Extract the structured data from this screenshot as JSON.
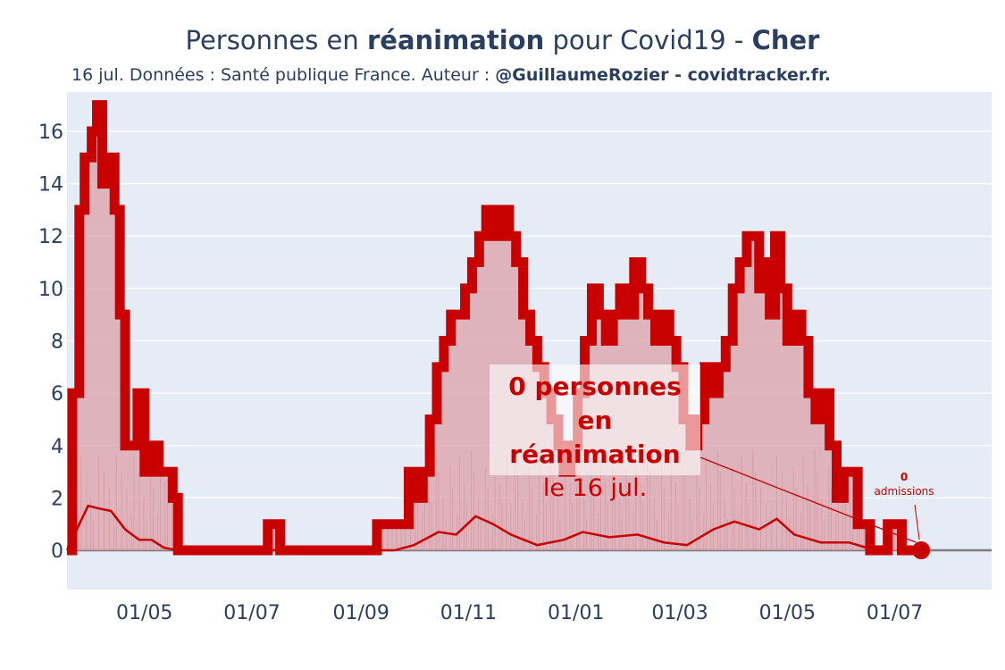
{
  "header": {
    "title_pre": "Personnes en ",
    "title_bold": "réanimation",
    "title_mid": " pour Covid19 - ",
    "title_dept": "Cher",
    "subtitle_pre": "16 jul. Données : Santé publique France. Auteur : ",
    "subtitle_bold": "@GuillaumeRozier - covidtracker.fr."
  },
  "annotation": {
    "line1": "0 personnes",
    "line2": "en réanimation",
    "line3": "le 16 jul."
  },
  "admissions": {
    "value": "0",
    "label": "admissions"
  },
  "colors": {
    "line": "#c80000",
    "fill": "#dba0a8",
    "plot_bg": "#e5ecf6",
    "grid": "#ffffff",
    "text": "#2a3f5f"
  },
  "chart_data": {
    "type": "line",
    "title": "Personnes en réanimation pour Covid19 - Cher",
    "x_axis": {
      "start": "2020-03-18",
      "end": "2021-08-25",
      "ticks": [
        {
          "date": "2020-05-01",
          "label": "01/05"
        },
        {
          "date": "2020-07-01",
          "label": "01/07"
        },
        {
          "date": "2020-09-01",
          "label": "01/09"
        },
        {
          "date": "2020-11-01",
          "label": "01/11"
        },
        {
          "date": "2021-01-01",
          "label": "01/01"
        },
        {
          "date": "2021-03-01",
          "label": "01/03"
        },
        {
          "date": "2021-05-01",
          "label": "01/05"
        },
        {
          "date": "2021-07-01",
          "label": "01/07"
        }
      ]
    },
    "y_axis": {
      "range": [
        -1.5,
        17.5
      ],
      "ticks": [
        0,
        2,
        4,
        6,
        8,
        10,
        12,
        14,
        16
      ],
      "grid": true
    },
    "series": [
      {
        "role": "reanimation",
        "points": [
          [
            "2020-03-18",
            0
          ],
          [
            "2020-03-21",
            6
          ],
          [
            "2020-03-25",
            13
          ],
          [
            "2020-03-28",
            15
          ],
          [
            "2020-04-01",
            16
          ],
          [
            "2020-04-04",
            17
          ],
          [
            "2020-04-07",
            14
          ],
          [
            "2020-04-10",
            15
          ],
          [
            "2020-04-14",
            13
          ],
          [
            "2020-04-17",
            9
          ],
          [
            "2020-04-20",
            4
          ],
          [
            "2020-04-24",
            4
          ],
          [
            "2020-04-27",
            6
          ],
          [
            "2020-05-01",
            3
          ],
          [
            "2020-05-05",
            4
          ],
          [
            "2020-05-09",
            3
          ],
          [
            "2020-05-13",
            3
          ],
          [
            "2020-05-17",
            2
          ],
          [
            "2020-05-20",
            0
          ],
          [
            "2020-07-08",
            0
          ],
          [
            "2020-07-10",
            1
          ],
          [
            "2020-07-15",
            1
          ],
          [
            "2020-07-17",
            0
          ],
          [
            "2020-09-07",
            0
          ],
          [
            "2020-09-10",
            1
          ],
          [
            "2020-09-25",
            1
          ],
          [
            "2020-09-28",
            3
          ],
          [
            "2020-10-02",
            2
          ],
          [
            "2020-10-06",
            3
          ],
          [
            "2020-10-10",
            5
          ],
          [
            "2020-10-14",
            7
          ],
          [
            "2020-10-18",
            8
          ],
          [
            "2020-10-22",
            9
          ],
          [
            "2020-10-26",
            9
          ],
          [
            "2020-10-30",
            10
          ],
          [
            "2020-11-03",
            11
          ],
          [
            "2020-11-07",
            12
          ],
          [
            "2020-11-11",
            13
          ],
          [
            "2020-11-15",
            12
          ],
          [
            "2020-11-19",
            13
          ],
          [
            "2020-11-24",
            12
          ],
          [
            "2020-11-28",
            11
          ],
          [
            "2020-12-02",
            9
          ],
          [
            "2020-12-06",
            8
          ],
          [
            "2020-12-10",
            7
          ],
          [
            "2020-12-14",
            6
          ],
          [
            "2020-12-18",
            5
          ],
          [
            "2020-12-22",
            4
          ],
          [
            "2020-12-25",
            3
          ],
          [
            "2020-12-29",
            4
          ],
          [
            "2021-01-02",
            6
          ],
          [
            "2021-01-06",
            8
          ],
          [
            "2021-01-10",
            10
          ],
          [
            "2021-01-14",
            9
          ],
          [
            "2021-01-18",
            8
          ],
          [
            "2021-01-22",
            9
          ],
          [
            "2021-01-26",
            10
          ],
          [
            "2021-01-30",
            9
          ],
          [
            "2021-02-03",
            11
          ],
          [
            "2021-02-07",
            10
          ],
          [
            "2021-02-11",
            9
          ],
          [
            "2021-02-15",
            8
          ],
          [
            "2021-02-19",
            9
          ],
          [
            "2021-02-23",
            8
          ],
          [
            "2021-02-27",
            7
          ],
          [
            "2021-03-03",
            5
          ],
          [
            "2021-03-07",
            4
          ],
          [
            "2021-03-11",
            5
          ],
          [
            "2021-03-15",
            7
          ],
          [
            "2021-03-19",
            6
          ],
          [
            "2021-03-23",
            7
          ],
          [
            "2021-03-27",
            8
          ],
          [
            "2021-03-31",
            10
          ],
          [
            "2021-04-04",
            11
          ],
          [
            "2021-04-08",
            12
          ],
          [
            "2021-04-12",
            12
          ],
          [
            "2021-04-15",
            10
          ],
          [
            "2021-04-18",
            11
          ],
          [
            "2021-04-21",
            9
          ],
          [
            "2021-04-24",
            12
          ],
          [
            "2021-04-27",
            10
          ],
          [
            "2021-05-01",
            8
          ],
          [
            "2021-05-05",
            9
          ],
          [
            "2021-05-09",
            8
          ],
          [
            "2021-05-13",
            6
          ],
          [
            "2021-05-17",
            5
          ],
          [
            "2021-05-21",
            6
          ],
          [
            "2021-05-25",
            4
          ],
          [
            "2021-05-29",
            2
          ],
          [
            "2021-06-02",
            3
          ],
          [
            "2021-06-06",
            3
          ],
          [
            "2021-06-10",
            1
          ],
          [
            "2021-06-14",
            1
          ],
          [
            "2021-06-17",
            0
          ],
          [
            "2021-06-25",
            0
          ],
          [
            "2021-06-27",
            1
          ],
          [
            "2021-07-03",
            1
          ],
          [
            "2021-07-05",
            0
          ],
          [
            "2021-07-16",
            0
          ]
        ]
      },
      {
        "role": "admissions_moving_average",
        "points": [
          [
            "2020-03-18",
            0
          ],
          [
            "2020-03-25",
            1
          ],
          [
            "2020-03-30",
            1.7
          ],
          [
            "2020-04-05",
            1.6
          ],
          [
            "2020-04-12",
            1.5
          ],
          [
            "2020-04-20",
            0.8
          ],
          [
            "2020-04-28",
            0.4
          ],
          [
            "2020-05-05",
            0.4
          ],
          [
            "2020-05-12",
            0.1
          ],
          [
            "2020-05-20",
            0
          ],
          [
            "2020-09-20",
            0
          ],
          [
            "2020-10-01",
            0.2
          ],
          [
            "2020-10-15",
            0.7
          ],
          [
            "2020-10-25",
            0.6
          ],
          [
            "2020-11-05",
            1.3
          ],
          [
            "2020-11-15",
            1.0
          ],
          [
            "2020-11-25",
            0.6
          ],
          [
            "2020-12-10",
            0.2
          ],
          [
            "2020-12-25",
            0.4
          ],
          [
            "2021-01-05",
            0.7
          ],
          [
            "2021-01-20",
            0.5
          ],
          [
            "2021-02-05",
            0.6
          ],
          [
            "2021-02-20",
            0.3
          ],
          [
            "2021-03-05",
            0.2
          ],
          [
            "2021-03-20",
            0.8
          ],
          [
            "2021-04-01",
            1.1
          ],
          [
            "2021-04-15",
            0.8
          ],
          [
            "2021-04-25",
            1.2
          ],
          [
            "2021-05-05",
            0.6
          ],
          [
            "2021-05-20",
            0.3
          ],
          [
            "2021-06-05",
            0.3
          ],
          [
            "2021-06-15",
            0.1
          ],
          [
            "2021-06-25",
            0
          ]
        ]
      }
    ],
    "last_point": {
      "date": "2021-07-16",
      "value": 0
    }
  }
}
